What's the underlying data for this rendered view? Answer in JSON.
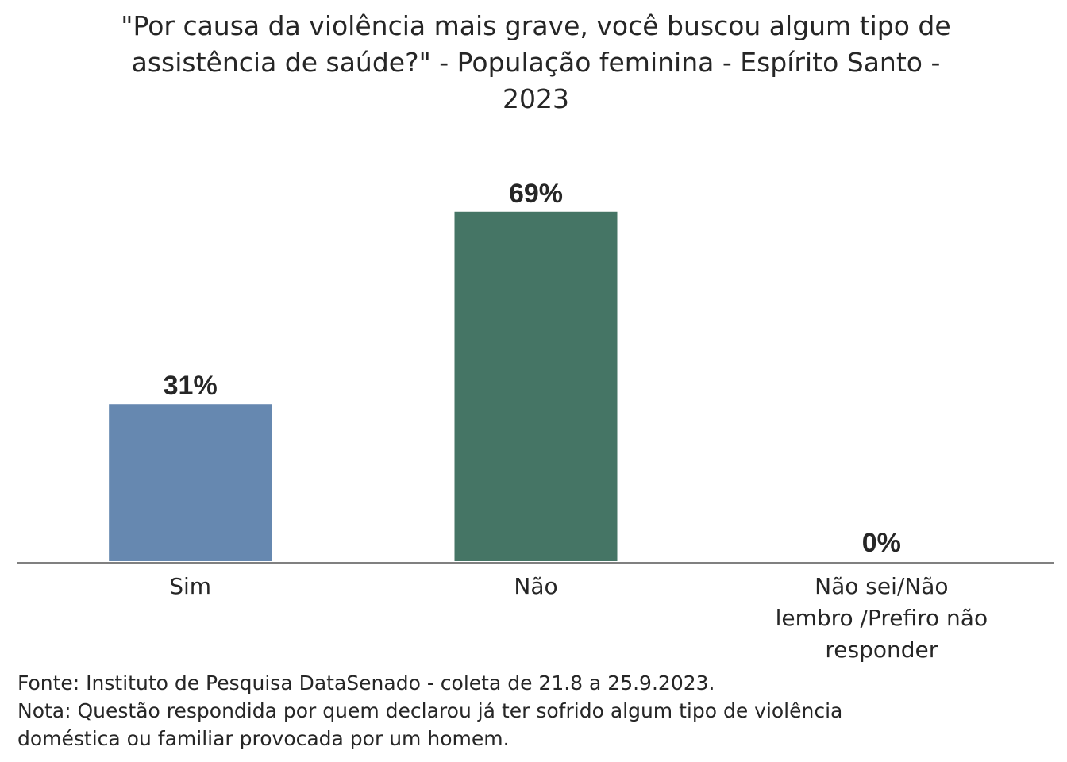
{
  "chart_data": {
    "type": "bar",
    "title": "\"Por causa da violência mais grave, você buscou algum tipo de assistência de saúde?\" - População feminina - Espírito Santo - 2023",
    "categories": [
      "Sim",
      "Não",
      "Não sei/Não lembro /Prefiro não responder"
    ],
    "category_lines": [
      [
        "Sim"
      ],
      [
        "Não"
      ],
      [
        "Não sei/Não",
        "lembro /Prefiro não",
        "responder"
      ]
    ],
    "values": [
      31,
      69,
      0
    ],
    "value_labels": [
      "31%",
      "69%",
      "0%"
    ],
    "colors": [
      "#6688b0",
      "#457565",
      "#808080"
    ],
    "ylim": [
      0,
      100
    ],
    "grid": false,
    "legend": "none",
    "xlabel": "",
    "ylabel": ""
  },
  "footer": {
    "source": "Fonte: Instituto de Pesquisa DataSenado - coleta de 21.8 a 25.9.2023.",
    "note_line1": "Nota: Questão respondida por quem declarou já ter sofrido algum tipo de violência",
    "note_line2": "doméstica ou familiar provocada por um homem."
  },
  "colors": {
    "axis": "#808080",
    "text": "#262626"
  }
}
